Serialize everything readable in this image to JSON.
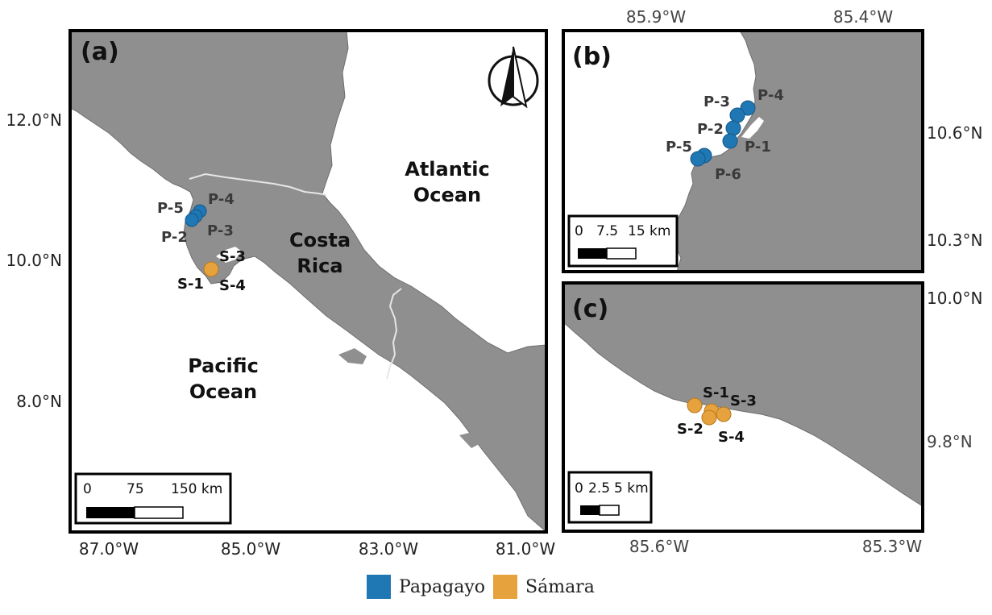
{
  "colors": {
    "land": "#8f8f8f",
    "ocean": "#ffffff",
    "border": "#e6e6e6",
    "frame": "#000000",
    "papagayo": "#1f77b4",
    "samara": "#e6a23c"
  },
  "panels": {
    "a": {
      "letter": "(a)",
      "lat_labels": [
        "12.0°N",
        "10.0°N",
        "8.0°N"
      ],
      "lon_labels": [
        "87.0°W",
        "85.0°W",
        "83.0°W",
        "81.0°W"
      ],
      "regions": {
        "atlantic_line1": "Atlantic",
        "atlantic_line2": "Ocean",
        "pacific_line1": "Pacific",
        "pacific_line2": "Ocean",
        "costa_line1": "Costa",
        "costa_line2": "Rica"
      },
      "sites": [
        "P-5",
        "P-4",
        "P-2",
        "P-3",
        "S-3",
        "S-1",
        "S-4"
      ],
      "scalebar": [
        "0",
        "75",
        "150 km"
      ]
    },
    "b": {
      "letter": "(b)",
      "lon_labels": [
        "85.9°W",
        "85.4°W"
      ],
      "lat_labels": [
        "10.6°N",
        "10.3°N"
      ],
      "sites": [
        "P-3",
        "P-4",
        "P-2",
        "P-5",
        "P-1",
        "P-6"
      ],
      "scalebar": [
        "0",
        "7.5",
        "15 km"
      ]
    },
    "c": {
      "letter": "(c)",
      "lat_labels": [
        "10.0°N",
        "9.8°N"
      ],
      "lon_labels": [
        "85.6°W",
        "85.3°W"
      ],
      "sites": [
        "S-1",
        "S-3",
        "S-2",
        "S-4"
      ],
      "scalebar": [
        "0",
        "2.5",
        "5 km"
      ]
    }
  },
  "legend": {
    "items": [
      {
        "label": "Papagayo",
        "color": "#1f77b4"
      },
      {
        "label": "Sámara",
        "color": "#e6a23c"
      }
    ]
  },
  "north_arrow": "north-arrow-icon"
}
